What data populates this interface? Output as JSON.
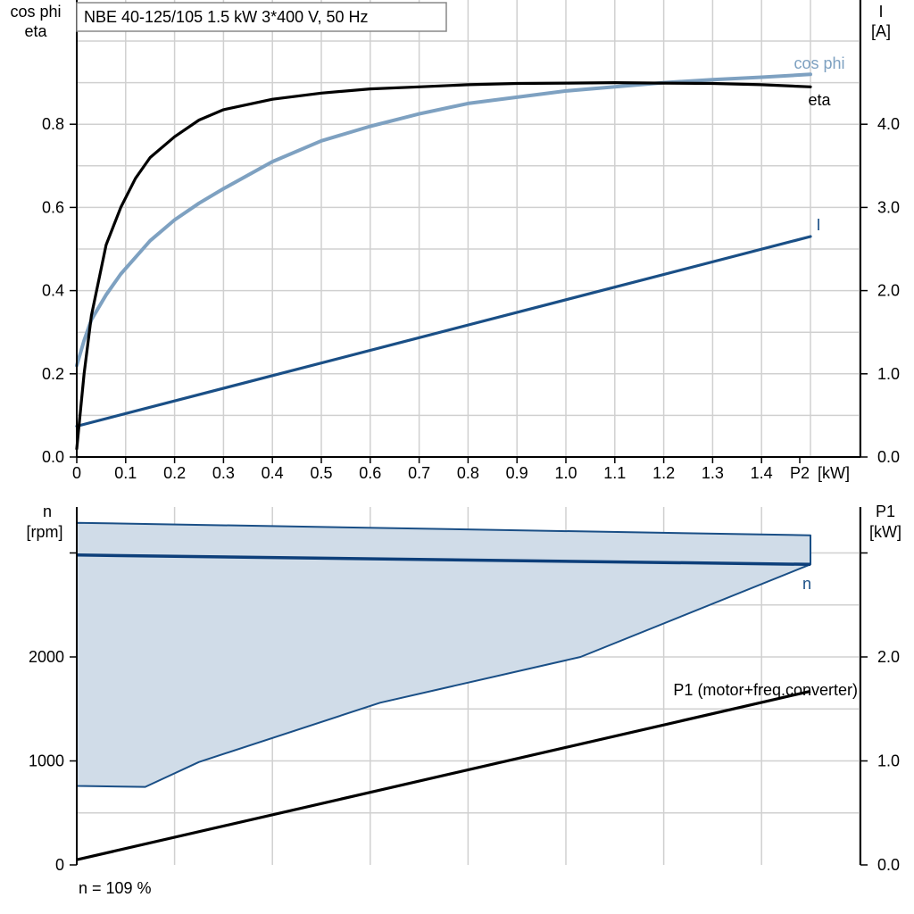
{
  "chart_data": [
    {
      "type": "line",
      "title": "NBE 40-125/105   1.5 kW   3*400 V, 50 Hz",
      "xlabel": "P2 [kW]",
      "ylabel_left": [
        "cos phi",
        "eta"
      ],
      "ylabel_right": [
        "I",
        "[A]"
      ],
      "x_ticks": [
        "0",
        "0.1",
        "0.2",
        "0.3",
        "0.4",
        "0.5",
        "0.6",
        "0.7",
        "0.8",
        "0.9",
        "1.0",
        "1.1",
        "1.2",
        "1.3",
        "1.4",
        "P2"
      ],
      "y_left_ticks": [
        "0.0",
        "0.2",
        "0.4",
        "0.6",
        "0.8"
      ],
      "y_right_ticks": [
        "0.0",
        "1.0",
        "2.0",
        "3.0",
        "4.0"
      ],
      "xlim": [
        0,
        1.5
      ],
      "ylim_left": [
        0,
        1.0
      ],
      "ylim_right": [
        0,
        5.0
      ],
      "grid": true,
      "colors": {
        "eta": "#000000",
        "cos_phi": "#7ea1c1",
        "current": "#1a4f86"
      },
      "series": [
        {
          "name": "eta",
          "axis": "left",
          "x": [
            0,
            0.015,
            0.03,
            0.06,
            0.09,
            0.12,
            0.15,
            0.2,
            0.25,
            0.3,
            0.4,
            0.5,
            0.6,
            0.7,
            0.8,
            0.9,
            1.0,
            1.1,
            1.2,
            1.3,
            1.4,
            1.5
          ],
          "y": [
            0.02,
            0.2,
            0.34,
            0.51,
            0.6,
            0.67,
            0.72,
            0.77,
            0.81,
            0.835,
            0.86,
            0.875,
            0.885,
            0.89,
            0.895,
            0.898,
            0.899,
            0.9,
            0.899,
            0.898,
            0.895,
            0.89
          ]
        },
        {
          "name": "cos phi",
          "axis": "left",
          "x": [
            0,
            0.015,
            0.03,
            0.06,
            0.09,
            0.12,
            0.15,
            0.2,
            0.25,
            0.3,
            0.4,
            0.5,
            0.6,
            0.7,
            0.8,
            0.9,
            1.0,
            1.1,
            1.2,
            1.3,
            1.4,
            1.5
          ],
          "y": [
            0.22,
            0.28,
            0.33,
            0.39,
            0.44,
            0.48,
            0.52,
            0.57,
            0.61,
            0.645,
            0.71,
            0.76,
            0.795,
            0.825,
            0.85,
            0.865,
            0.88,
            0.89,
            0.9,
            0.907,
            0.913,
            0.92
          ]
        },
        {
          "name": "I",
          "axis": "right",
          "x": [
            0,
            1.5
          ],
          "y": [
            0.37,
            2.65
          ]
        }
      ],
      "annotations": [
        "cos phi",
        "eta",
        "I"
      ]
    },
    {
      "type": "area",
      "ylabel_left": [
        "n",
        "[rpm]"
      ],
      "ylabel_right": [
        "P1",
        "[kW]"
      ],
      "y_left_ticks": [
        "0",
        "1000",
        "2000"
      ],
      "y_right_ticks": [
        "0.0",
        "1.0",
        "2.0"
      ],
      "xlim": [
        0,
        1.5
      ],
      "ylim_left": [
        0,
        3300
      ],
      "ylim_right": [
        0,
        3.3
      ],
      "grid": true,
      "colors": {
        "band_fill": "#d0dce8",
        "band_line": "#1a4f86",
        "speed": "#0d3f7a",
        "p1": "#000000"
      },
      "speed_band": {
        "upper": {
          "x": [
            0,
            1.5
          ],
          "y": [
            3290,
            3170
          ]
        },
        "lower": {
          "x": [
            0,
            0.14,
            0.25,
            0.62,
            1.03,
            1.5
          ],
          "y": [
            760,
            750,
            990,
            1560,
            2000,
            2890
          ]
        }
      },
      "series": [
        {
          "name": "n",
          "axis": "left",
          "x": [
            0,
            1.5
          ],
          "y": [
            2980,
            2890
          ]
        },
        {
          "name": "P1 (motor+freq.converter)",
          "axis": "right",
          "x": [
            0,
            1.5
          ],
          "y": [
            0.05,
            1.67
          ]
        }
      ],
      "annotations": [
        "n",
        "P1 (motor+freq.converter)"
      ],
      "footnote": "n = 109 %"
    }
  ]
}
